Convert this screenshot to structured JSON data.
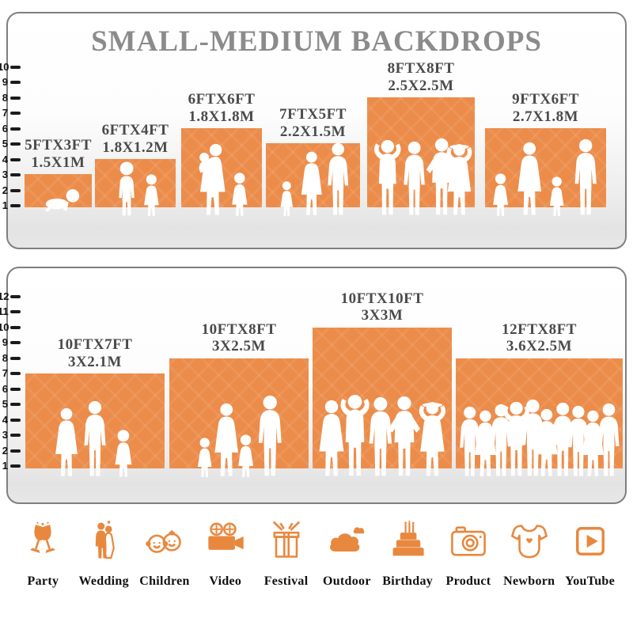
{
  "title": "SMALL-MEDIUM BACKDROPS",
  "colors": {
    "backdrop_orange": "#EC8C4A",
    "icon_orange": "#E8883E",
    "title_gray": "#8B8B8B",
    "label_gray": "#4A4A4A"
  },
  "panels": [
    {
      "id": "small",
      "ruler_max": 10,
      "backdrops": [
        {
          "size_ft": "5FTX3FT",
          "size_m": "1.5X1M",
          "width_ft": 5,
          "height_ft": 3,
          "people": "crawling-baby"
        },
        {
          "size_ft": "6FTX4FT",
          "size_m": "1.8X1.2M",
          "width_ft": 6,
          "height_ft": 4,
          "people": "boy-and-girl"
        },
        {
          "size_ft": "6FTX6FT",
          "size_m": "1.8X1.8M",
          "width_ft": 6,
          "height_ft": 6,
          "people": "mother-holding-baby-and-girl"
        },
        {
          "size_ft": "7FTX5FT",
          "size_m": "2.2X1.5M",
          "width_ft": 7,
          "height_ft": 5,
          "people": "toddler-woman-man"
        },
        {
          "size_ft": "8FTX8FT",
          "size_m": "2.5X2.5M",
          "width_ft": 8,
          "height_ft": 8,
          "people": "four-adults-posing"
        },
        {
          "size_ft": "9FTX6FT",
          "size_m": "2.7X1.8M",
          "width_ft": 9,
          "height_ft": 6,
          "people": "family-of-four-holding-hands"
        }
      ]
    },
    {
      "id": "medium",
      "ruler_max": 12,
      "backdrops": [
        {
          "size_ft": "10FTX7FT",
          "size_m": "3X2.1M",
          "width_ft": 10,
          "height_ft": 7,
          "people": "woman-man-girl"
        },
        {
          "size_ft": "10FTX8FT",
          "size_m": "3X2.5M",
          "width_ft": 10,
          "height_ft": 8,
          "people": "family-of-four-holding-hands"
        },
        {
          "size_ft": "10FTX10FT",
          "size_m": "3X3M",
          "width_ft": 10,
          "height_ft": 10,
          "people": "five-adults-posing"
        },
        {
          "size_ft": "12FTX8FT",
          "size_m": "3.6X2.5M",
          "width_ft": 12,
          "height_ft": 8,
          "people": "crowd-of-ten"
        }
      ]
    }
  ],
  "categories": [
    {
      "label": "Party",
      "icon": "party-glasses-icon"
    },
    {
      "label": "Wedding",
      "icon": "wedding-couple-icon"
    },
    {
      "label": "Children",
      "icon": "children-faces-icon"
    },
    {
      "label": "Video",
      "icon": "video-camera-icon"
    },
    {
      "label": "Festival",
      "icon": "festival-gift-icon"
    },
    {
      "label": "Outdoor",
      "icon": "outdoor-clouds-icon"
    },
    {
      "label": "Birthday",
      "icon": "birthday-cake-icon"
    },
    {
      "label": "Product",
      "icon": "product-camera-icon"
    },
    {
      "label": "Newborn",
      "icon": "newborn-onesie-icon"
    },
    {
      "label": "YouTube",
      "icon": "youtube-play-icon"
    }
  ]
}
